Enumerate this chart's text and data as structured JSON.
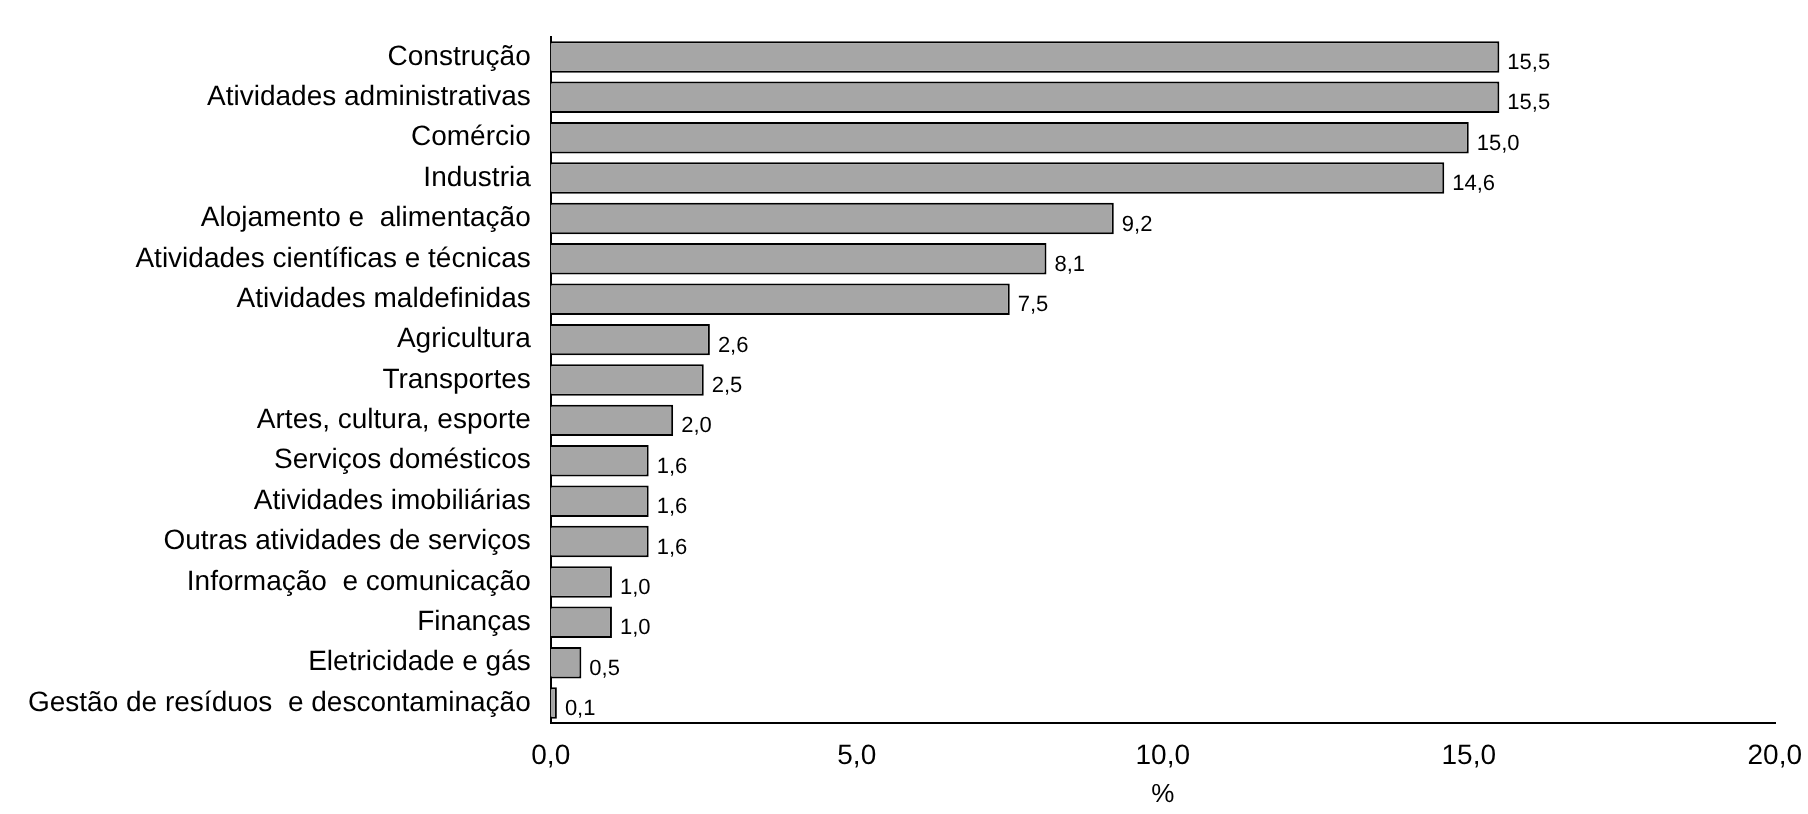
{
  "chart_data": {
    "type": "bar",
    "orientation": "horizontal",
    "xlabel": "%",
    "categories": [
      "Construção",
      "Atividades administrativas",
      "Comércio",
      "Industria",
      "Alojamento e  alimentação",
      "Atividades científicas e técnicas",
      "Atividades maldefinidas",
      "Agricultura",
      "Transportes",
      "Artes, cultura, esporte",
      "Serviços domésticos",
      "Atividades imobiliárias",
      "Outras atividades de serviços",
      "Informação  e comunicação",
      "Finanças",
      "Eletricidade e gás",
      "Gestão de resíduos  e descontaminação"
    ],
    "values": [
      15.5,
      15.5,
      15.0,
      14.6,
      9.2,
      8.1,
      7.5,
      2.6,
      2.5,
      2.0,
      1.6,
      1.6,
      1.6,
      1.0,
      1.0,
      0.5,
      0.1
    ],
    "value_labels": [
      "15,5",
      "15,5",
      "15,0",
      "14,6",
      "9,2",
      "8,1",
      "7,5",
      "2,6",
      "2,5",
      "2,0",
      "1,6",
      "1,6",
      "1,6",
      "1,0",
      "1,0",
      "0,5",
      "0,1"
    ],
    "color": "#a6a6a6",
    "xlim": [
      0,
      20
    ],
    "xticks": [
      {
        "value": 0,
        "label": "0,0"
      },
      {
        "value": 5,
        "label": "5,0"
      },
      {
        "value": 10,
        "label": "10,0"
      },
      {
        "value": 15,
        "label": "15,0"
      },
      {
        "value": 20,
        "label": "20,0"
      }
    ],
    "grid": false,
    "legend": false
  }
}
